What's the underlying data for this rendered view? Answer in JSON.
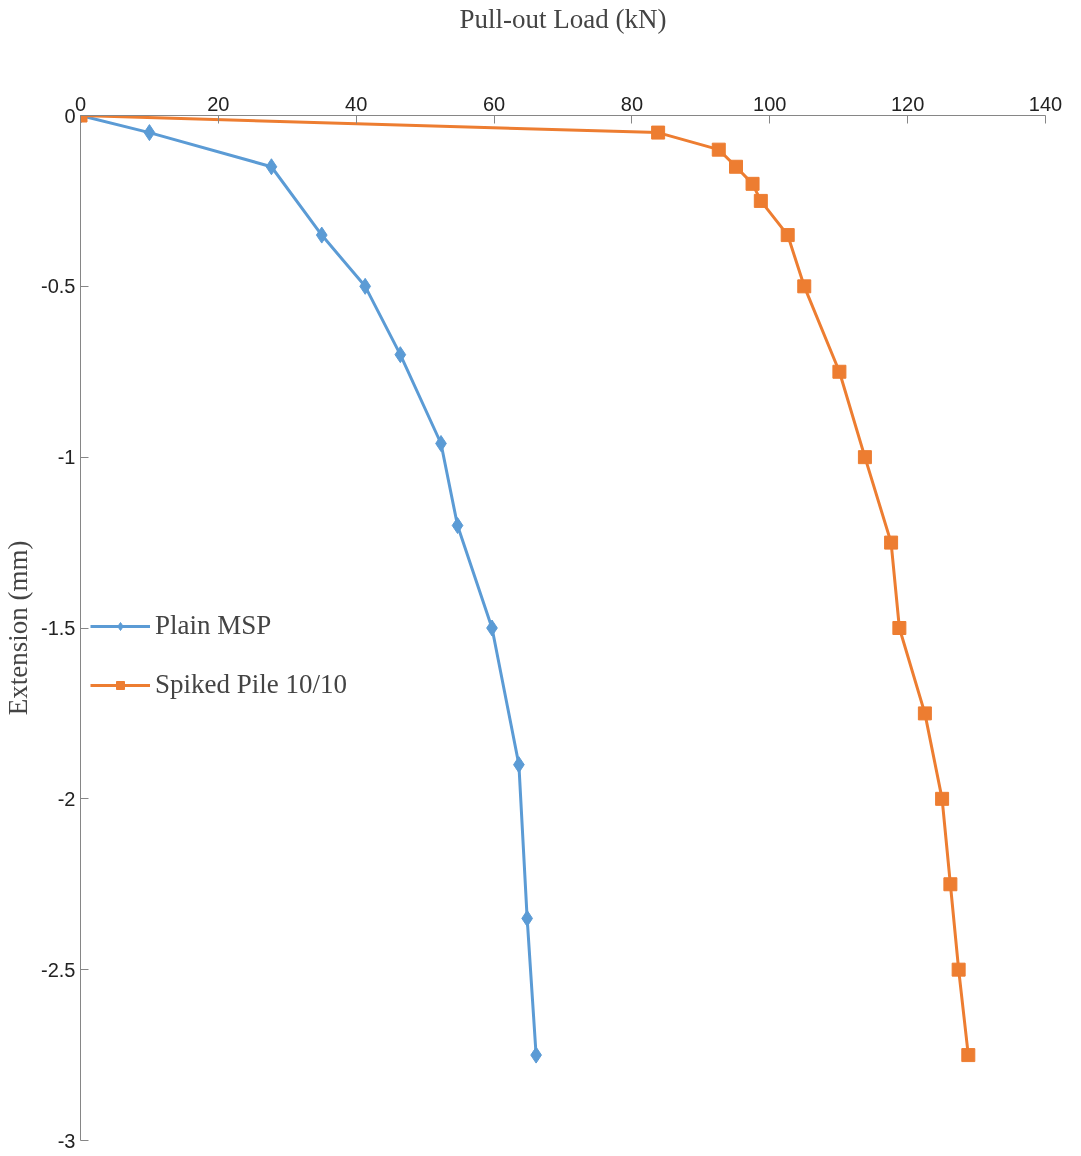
{
  "chart_data": {
    "type": "line",
    "xlabel": "Pull-out Load (kN)",
    "ylabel": "Extension (mm)",
    "xlim": [
      0,
      140
    ],
    "xticks": [
      0,
      20,
      40,
      60,
      80,
      100,
      120,
      140
    ],
    "ylim": [
      -3,
      0
    ],
    "yticks": [
      0,
      -0.5,
      -1,
      -1.5,
      -2,
      -2.5,
      -3
    ],
    "grid": false,
    "legend": "left",
    "line_style": "solid",
    "series": [
      {
        "name": "Plain MSP",
        "color": "#5b9bd5",
        "marker": "diamond",
        "x": [
          0,
          10.0,
          27.7,
          35.0,
          41.3,
          46.4,
          52.3,
          54.7,
          59.7,
          63.6,
          64.8,
          66.1
        ],
        "values": [
          0,
          -0.05,
          -0.15,
          -0.35,
          -0.5,
          -0.7,
          -0.96,
          -1.2,
          -1.5,
          -1.9,
          -2.35,
          -2.75
        ]
      },
      {
        "name": "Spiked Pile 10/10",
        "color": "#ed7d31",
        "marker": "square",
        "x": [
          0,
          83.8,
          92.6,
          95.1,
          97.5,
          98.7,
          102.6,
          105.0,
          110.1,
          113.8,
          117.6,
          118.8,
          122.5,
          125.0,
          126.2,
          127.4,
          128.8
        ],
        "values": [
          0,
          -0.05,
          -0.1,
          -0.15,
          -0.2,
          -0.25,
          -0.35,
          -0.5,
          -0.75,
          -1.0,
          -1.25,
          -1.5,
          -1.75,
          -2.0,
          -2.25,
          -2.5,
          -2.75
        ]
      }
    ]
  }
}
